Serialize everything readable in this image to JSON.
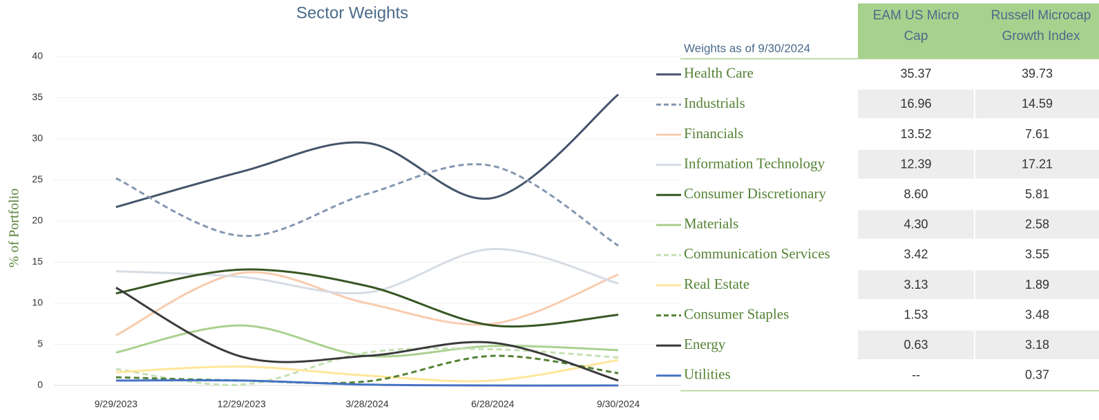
{
  "chart_data": {
    "type": "line",
    "title": "Sector Weights",
    "y_label": "% of Portfolio",
    "categories": [
      "9/29/2023",
      "12/29/2023",
      "3/28/2024",
      "6/28/2024",
      "9/30/2024"
    ],
    "ylim": [
      0,
      40
    ],
    "yticks": [
      0,
      5,
      10,
      15,
      20,
      25,
      30,
      35,
      40
    ],
    "grid": true,
    "smooth": true,
    "series": [
      {
        "name": "Health Care",
        "color": "#44546a",
        "dash": false,
        "values": [
          21.7,
          26.0,
          29.5,
          22.8,
          35.4
        ]
      },
      {
        "name": "Industrials",
        "color": "#8497b0",
        "dash": true,
        "values": [
          25.2,
          18.2,
          23.3,
          26.7,
          17.0
        ]
      },
      {
        "name": "Financials",
        "color": "#f8cbad",
        "dash": false,
        "values": [
          6.1,
          13.7,
          10.0,
          7.5,
          13.5
        ]
      },
      {
        "name": "Information Technology",
        "color": "#d6dce4",
        "dash": false,
        "values": [
          13.9,
          13.2,
          11.3,
          16.6,
          12.4
        ]
      },
      {
        "name": "Consumer Discretionary",
        "color": "#375623",
        "dash": false,
        "values": [
          11.2,
          14.1,
          12.1,
          7.3,
          8.6
        ]
      },
      {
        "name": "Materials",
        "color": "#a9d18e",
        "dash": false,
        "values": [
          4.0,
          7.3,
          3.6,
          4.8,
          4.3
        ]
      },
      {
        "name": "Communication Services",
        "color": "#c5e0b4",
        "dash": true,
        "values": [
          2.0,
          0.1,
          4.0,
          4.4,
          3.4
        ]
      },
      {
        "name": "Real Estate",
        "color": "#ffe699",
        "dash": false,
        "values": [
          1.6,
          2.3,
          1.2,
          0.6,
          3.1
        ]
      },
      {
        "name": "Consumer Staples",
        "color": "#548235",
        "dash": true,
        "values": [
          1.0,
          0.6,
          0.5,
          3.6,
          1.5
        ]
      },
      {
        "name": "Energy",
        "color": "#3a3a3a",
        "dash": false,
        "values": [
          11.9,
          3.5,
          3.6,
          5.2,
          0.6
        ]
      },
      {
        "name": "Utilities",
        "color": "#4472c4",
        "dash": false,
        "values": [
          0.6,
          0.6,
          0.1,
          0.0,
          0.0
        ]
      }
    ]
  },
  "table": {
    "caption": "Weights as of 9/30/2024",
    "columns": [
      "EAM US Micro Cap",
      "Russell Microcap Growth Index"
    ],
    "rows": [
      [
        "35.37",
        "39.73"
      ],
      [
        "16.96",
        "14.59"
      ],
      [
        "13.52",
        "7.61"
      ],
      [
        "12.39",
        "17.21"
      ],
      [
        "8.60",
        "5.81"
      ],
      [
        "4.30",
        "2.58"
      ],
      [
        "3.42",
        "3.55"
      ],
      [
        "3.13",
        "1.89"
      ],
      [
        "1.53",
        "3.48"
      ],
      [
        "0.63",
        "3.18"
      ],
      [
        "--",
        "0.37"
      ]
    ]
  }
}
